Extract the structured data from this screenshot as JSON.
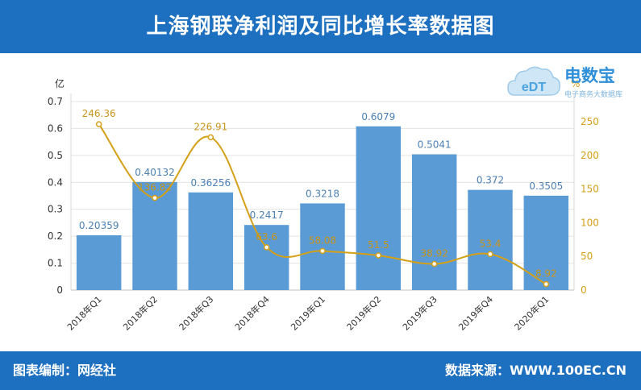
{
  "title": "上海钢联净利润及同比增长率数据图",
  "footer": {
    "left": "图表编制：网经社",
    "right": "数据来源：WWW.100EC.CN"
  },
  "logo": {
    "badge": "eDT",
    "name": "电数宝",
    "sub": "电子商务大数据库"
  },
  "colors": {
    "header_bg": "#1d6fbf",
    "bar": "#5b9bd5",
    "line": "#d4a017",
    "bar_label": "#4a7fb5",
    "line_label": "#c8961a"
  },
  "chart_data": {
    "type": "bar+line",
    "categories": [
      "2018年Q1",
      "2018年Q2",
      "2018年Q3",
      "2018年Q4",
      "2019年Q1",
      "2019年Q2",
      "2019年Q3",
      "2019年Q4",
      "2020年Q1"
    ],
    "series": [
      {
        "axis": "left",
        "type": "bar",
        "values": [
          0.20359,
          0.40132,
          0.36256,
          0.2417,
          0.3218,
          0.6079,
          0.5041,
          0.372,
          0.3505
        ],
        "labels": [
          "0.20359",
          "0.40132",
          "0.36256",
          "0.2417",
          "0.3218",
          "0.6079",
          "0.5041",
          "0.372",
          "0.3505"
        ]
      },
      {
        "axis": "right",
        "type": "line",
        "values": [
          246.36,
          136.82,
          226.91,
          63.6,
          58.08,
          51.5,
          38.92,
          53.4,
          8.92
        ],
        "labels": [
          "246.36",
          "136.82",
          "226.91",
          "63.6",
          "58.08",
          "51.5",
          "38.92",
          "53.4",
          "8.92"
        ]
      }
    ],
    "y_left": {
      "unit": "亿",
      "min": 0,
      "max": 0.7,
      "ticks": [
        "0",
        "0.1",
        "0.2",
        "0.3",
        "0.4",
        "0.5",
        "0.6",
        "0.7"
      ]
    },
    "y_right": {
      "unit": "%",
      "min": 0,
      "max": 280,
      "ticks": [
        "0",
        "50",
        "100",
        "150",
        "200",
        "250"
      ]
    },
    "grid": true,
    "legend": "none"
  }
}
